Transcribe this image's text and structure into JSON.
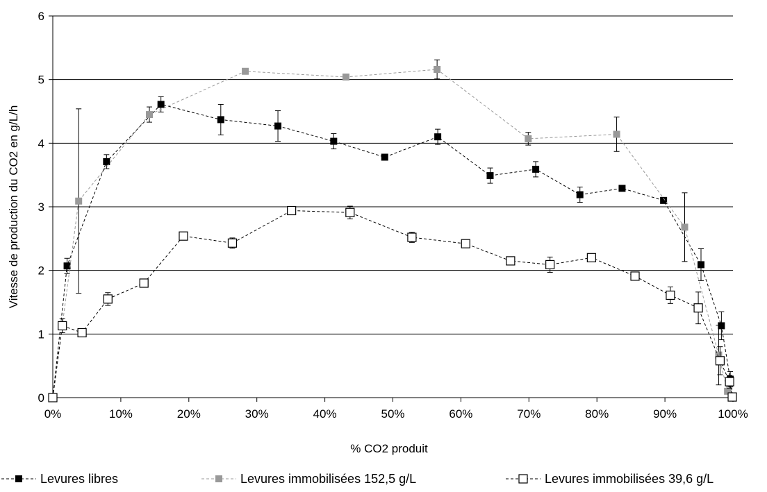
{
  "chart_data": {
    "type": "scatter",
    "title": "",
    "xlabel": "% CO2 produit",
    "ylabel": "Vitesse de production du CO2 en g/L/h",
    "xlim": [
      0,
      100
    ],
    "ylim": [
      0,
      6
    ],
    "x_ticks": [
      0,
      10,
      20,
      30,
      40,
      50,
      60,
      70,
      80,
      90,
      100
    ],
    "x_tick_labels": [
      "0%",
      "10%",
      "20%",
      "30%",
      "40%",
      "50%",
      "60%",
      "70%",
      "80%",
      "90%",
      "100%"
    ],
    "y_ticks": [
      0,
      1,
      2,
      3,
      4,
      5,
      6
    ],
    "y_tick_labels": [
      "0",
      "1",
      "2",
      "3",
      "4",
      "5",
      "6"
    ],
    "grid": "horizontal",
    "legend_position": "bottom",
    "series": [
      {
        "name": "Levures libres",
        "marker": "filled-square",
        "color": "#000000",
        "points": [
          {
            "x": 0,
            "y": 0,
            "err": 0
          },
          {
            "x": 2.1,
            "y": 2.07,
            "err": 0.12
          },
          {
            "x": 7.9,
            "y": 3.71,
            "err": 0.11
          },
          {
            "x": 15.9,
            "y": 4.61,
            "err": 0.12
          },
          {
            "x": 24.7,
            "y": 4.37,
            "err": 0.24
          },
          {
            "x": 33.1,
            "y": 4.27,
            "err": 0.24
          },
          {
            "x": 41.3,
            "y": 4.03,
            "err": 0.12
          },
          {
            "x": 48.8,
            "y": 3.78,
            "err": 0
          },
          {
            "x": 56.6,
            "y": 4.1,
            "err": 0.12
          },
          {
            "x": 64.3,
            "y": 3.49,
            "err": 0.12
          },
          {
            "x": 71.0,
            "y": 3.59,
            "err": 0.12
          },
          {
            "x": 77.5,
            "y": 3.19,
            "err": 0.12
          },
          {
            "x": 83.7,
            "y": 3.29,
            "err": 0
          },
          {
            "x": 89.8,
            "y": 3.1,
            "err": 0
          },
          {
            "x": 95.3,
            "y": 2.09,
            "err": 0.25
          },
          {
            "x": 98.3,
            "y": 1.13,
            "err": 0.22
          },
          {
            "x": 99.6,
            "y": 0.29,
            "err": 0.12
          },
          {
            "x": 100,
            "y": 0,
            "err": 0
          }
        ]
      },
      {
        "name": "Levures immobilisées 152,5 g/L",
        "marker": "filled-square",
        "color": "#999999",
        "points": [
          {
            "x": 0,
            "y": 0,
            "err": 0
          },
          {
            "x": 3.8,
            "y": 3.09,
            "err": 1.45
          },
          {
            "x": 14.2,
            "y": 4.45,
            "err": 0.12
          },
          {
            "x": 28.3,
            "y": 5.13,
            "err": 0
          },
          {
            "x": 43.1,
            "y": 5.04,
            "err": 0
          },
          {
            "x": 56.5,
            "y": 5.16,
            "err": 0.15
          },
          {
            "x": 69.9,
            "y": 4.07,
            "err": 0.1
          },
          {
            "x": 82.9,
            "y": 4.14,
            "err": 0.27
          },
          {
            "x": 92.9,
            "y": 2.68,
            "err": 0.54
          },
          {
            "x": 97.9,
            "y": 0.67,
            "err": 0.47
          },
          {
            "x": 99.2,
            "y": 0.1,
            "err": 0
          },
          {
            "x": 100,
            "y": 0,
            "err": 0
          }
        ]
      },
      {
        "name": "Levures immobilisées 39,6 g/L",
        "marker": "open-square",
        "color": "#000000",
        "points": [
          {
            "x": 0,
            "y": 0,
            "err": 0
          },
          {
            "x": 1.4,
            "y": 1.13,
            "err": 0.11
          },
          {
            "x": 4.3,
            "y": 1.02,
            "err": 0
          },
          {
            "x": 8.1,
            "y": 1.55,
            "err": 0.1
          },
          {
            "x": 13.4,
            "y": 1.8,
            "err": 0
          },
          {
            "x": 19.2,
            "y": 2.54,
            "err": 0
          },
          {
            "x": 26.4,
            "y": 2.43,
            "err": 0.08
          },
          {
            "x": 35.1,
            "y": 2.94,
            "err": 0
          },
          {
            "x": 43.7,
            "y": 2.91,
            "err": 0.1
          },
          {
            "x": 52.8,
            "y": 2.52,
            "err": 0.08
          },
          {
            "x": 60.7,
            "y": 2.42,
            "err": 0
          },
          {
            "x": 67.3,
            "y": 2.15,
            "err": 0
          },
          {
            "x": 73.1,
            "y": 2.09,
            "err": 0.12
          },
          {
            "x": 79.2,
            "y": 2.2,
            "err": 0
          },
          {
            "x": 85.6,
            "y": 1.91,
            "err": 0
          },
          {
            "x": 90.8,
            "y": 1.61,
            "err": 0.13
          },
          {
            "x": 94.9,
            "y": 1.41,
            "err": 0.25
          },
          {
            "x": 98.1,
            "y": 0.58,
            "err": 0.22
          },
          {
            "x": 99.5,
            "y": 0.25,
            "err": 0.1
          },
          {
            "x": 99.9,
            "y": 0.01,
            "err": 0
          }
        ]
      }
    ]
  }
}
